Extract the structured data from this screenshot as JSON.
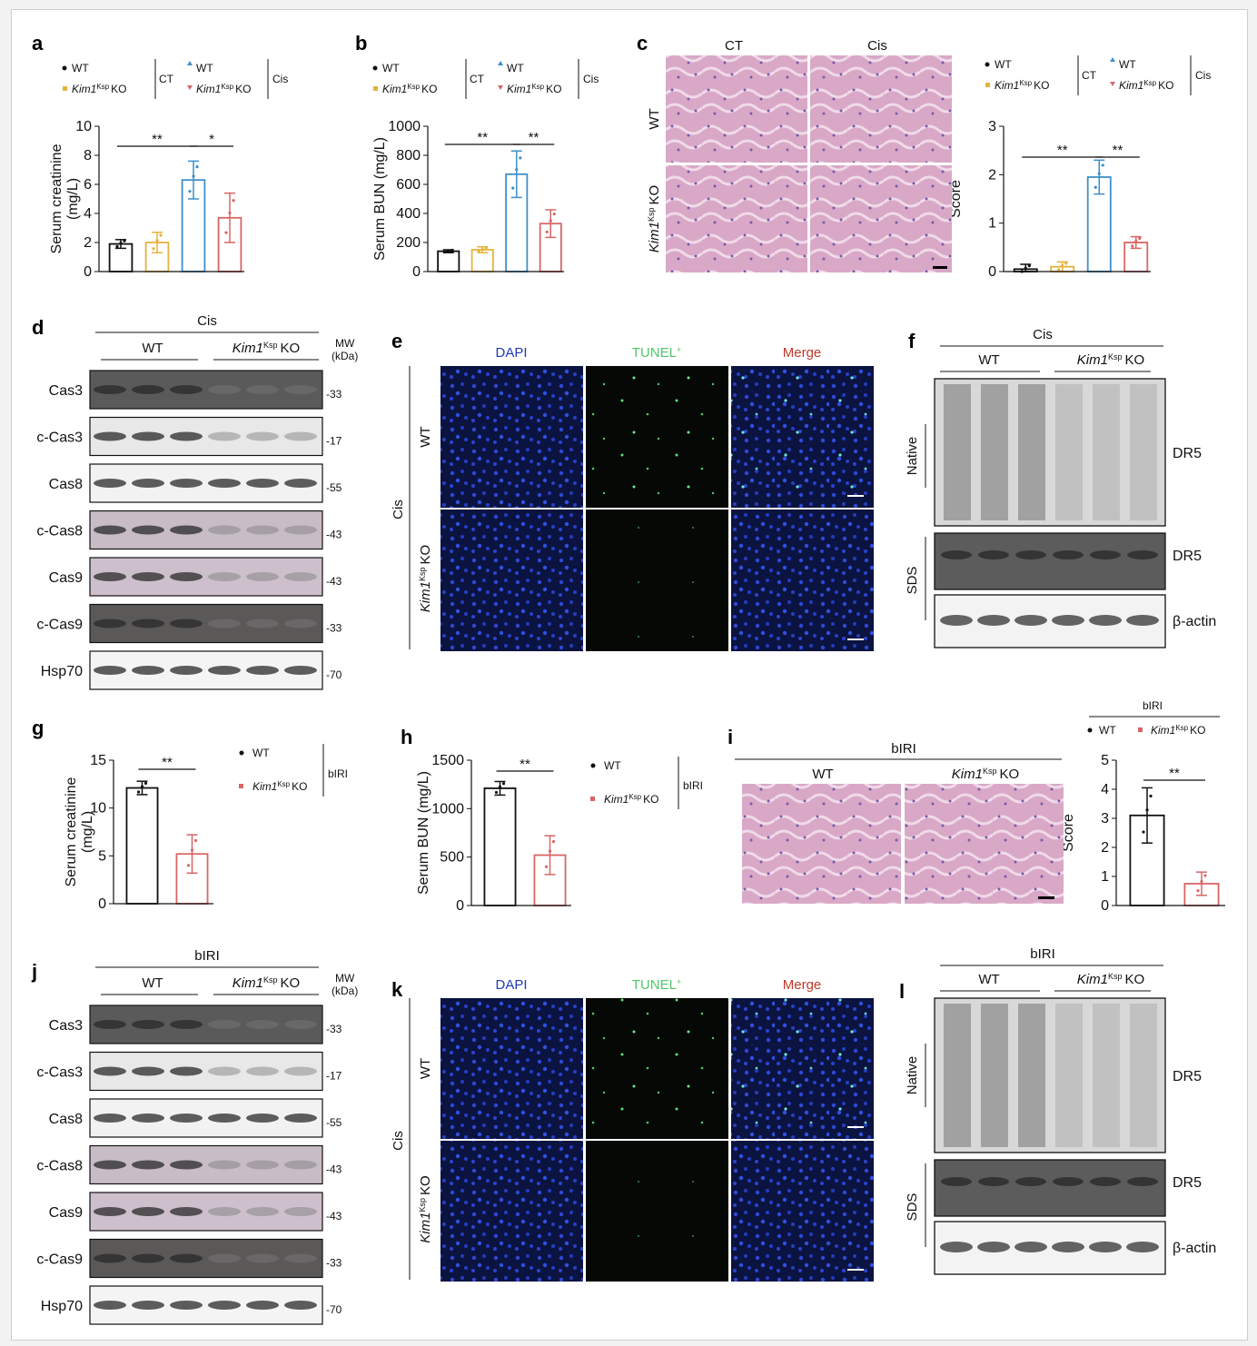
{
  "colors": {
    "wt_ct": "#111111",
    "ko_ct": "#e5b33d",
    "wt_cis": "#3d8fc9",
    "ko_cis": "#d96565",
    "he": "#d7a9c6",
    "dapi": "#1f3ab8",
    "tunel": "#4fc86a",
    "blot_dark": "#4a4a4a"
  },
  "legend": {
    "wt": "WT",
    "ko_gene": "Kim1",
    "ko_sup": "Ksp",
    "ko_suffix": "KO",
    "ct": "CT",
    "cis": "Cis",
    "biri": "bIRI"
  },
  "panels": {
    "a": {
      "letter": "a",
      "ylabel": "Serum creatinine",
      "ylabel2": "(mg/L)",
      "sig": [
        "**",
        "*"
      ]
    },
    "b": {
      "letter": "b",
      "ylabel": "Serum BUN (mg/L)",
      "sig": [
        "**",
        "**"
      ]
    },
    "c": {
      "letter": "c",
      "col1": "CT",
      "col2": "Cis",
      "row1": "WT",
      "row2": "KO",
      "ylabel": "Score",
      "sig": [
        "**",
        "**"
      ]
    },
    "d": {
      "letter": "d",
      "group": "Cis",
      "mw": "MW",
      "kda": "(kDa)",
      "rows": [
        {
          "name": "Cas3",
          "mw": "-33"
        },
        {
          "name": "c-Cas3",
          "mw": "-17"
        },
        {
          "name": "Cas8",
          "mw": "-55"
        },
        {
          "name": "c-Cas8",
          "mw": "-43"
        },
        {
          "name": "Cas9",
          "mw": "-43"
        },
        {
          "name": "c-Cas9",
          "mw": "-33"
        },
        {
          "name": "Hsp70",
          "mw": "-70"
        }
      ]
    },
    "e": {
      "letter": "e",
      "cols": [
        "DAPI",
        "TUNEL",
        "Merge"
      ],
      "tunel_sup": "+",
      "group": "Cis",
      "row1": "WT",
      "row2": "KO"
    },
    "f": {
      "letter": "f",
      "group": "Cis",
      "native": "Native",
      "sds": "SDS",
      "dr5": "DR5",
      "actin": "β-actin"
    },
    "g": {
      "letter": "g",
      "ylabel": "Serum creatinine",
      "ylabel2": "(mg/L)",
      "sig": "**"
    },
    "h": {
      "letter": "h",
      "ylabel": "Serum BUN (mg/L)",
      "sig": "**"
    },
    "i": {
      "letter": "i",
      "group": "bIRI",
      "col1": "WT",
      "ylabel": "Score",
      "sig": "**"
    },
    "j": {
      "letter": "j",
      "group": "bIRI",
      "mw": "MW",
      "kda": "(kDa)",
      "rows": [
        {
          "name": "Cas3",
          "mw": "-33"
        },
        {
          "name": "c-Cas3",
          "mw": "-17"
        },
        {
          "name": "Cas8",
          "mw": "-55"
        },
        {
          "name": "c-Cas8",
          "mw": "-43"
        },
        {
          "name": "Cas9",
          "mw": "-43"
        },
        {
          "name": "c-Cas9",
          "mw": "-33"
        },
        {
          "name": "Hsp70",
          "mw": "-70"
        }
      ]
    },
    "k": {
      "letter": "k",
      "cols": [
        "DAPI",
        "TUNEL",
        "Merge"
      ],
      "tunel_sup": "+",
      "group": "Cis",
      "row1": "WT",
      "row2": "KO"
    },
    "l": {
      "letter": "l",
      "group": "bIRI",
      "native": "Native",
      "sds": "SDS",
      "dr5": "DR5",
      "actin": "β-actin"
    }
  },
  "chart_data": [
    {
      "panel": "a",
      "type": "bar",
      "categories": [
        "WT CT",
        "Kim1Ksp KO CT",
        "WT Cis",
        "Kim1Ksp KO Cis"
      ],
      "values": [
        1.9,
        2.0,
        6.3,
        3.7
      ],
      "errors": [
        0.3,
        0.7,
        1.3,
        1.7
      ],
      "ylabel": "Serum creatinine (mg/L)",
      "ylim": [
        0,
        10
      ],
      "yticks": [
        0,
        2,
        4,
        6,
        8,
        10
      ]
    },
    {
      "panel": "b",
      "type": "bar",
      "categories": [
        "WT CT",
        "Kim1Ksp KO CT",
        "WT Cis",
        "Kim1Ksp KO Cis"
      ],
      "values": [
        140,
        150,
        670,
        330
      ],
      "errors": [
        10,
        20,
        160,
        95
      ],
      "ylabel": "Serum BUN (mg/L)",
      "ylim": [
        0,
        1000
      ],
      "yticks": [
        0,
        200,
        400,
        600,
        800,
        1000
      ]
    },
    {
      "panel": "c",
      "type": "bar",
      "categories": [
        "WT CT",
        "Kim1Ksp KO CT",
        "WT Cis",
        "Kim1Ksp KO Cis"
      ],
      "values": [
        0.05,
        0.1,
        1.95,
        0.6
      ],
      "errors": [
        0.1,
        0.1,
        0.35,
        0.12
      ],
      "ylabel": "Score",
      "ylim": [
        0,
        3
      ],
      "yticks": [
        0,
        1,
        2,
        3
      ]
    },
    {
      "panel": "g",
      "type": "bar",
      "categories": [
        "WT",
        "Kim1Ksp KO"
      ],
      "values": [
        12.1,
        5.2
      ],
      "errors": [
        0.7,
        2.0
      ],
      "ylabel": "Serum creatinine (mg/L)",
      "ylim": [
        0,
        15
      ],
      "yticks": [
        0,
        5,
        10,
        15
      ]
    },
    {
      "panel": "h",
      "type": "bar",
      "categories": [
        "WT",
        "Kim1Ksp KO"
      ],
      "values": [
        1210,
        520
      ],
      "errors": [
        70,
        200
      ],
      "ylabel": "Serum BUN (mg/L)",
      "ylim": [
        0,
        1500
      ],
      "yticks": [
        0,
        500,
        1000,
        1500
      ]
    },
    {
      "panel": "i",
      "type": "bar",
      "categories": [
        "WT",
        "Kim1Ksp KO"
      ],
      "values": [
        3.1,
        0.75
      ],
      "errors": [
        0.95,
        0.4
      ],
      "ylabel": "Score",
      "ylim": [
        0,
        5
      ],
      "yticks": [
        0,
        1,
        2,
        3,
        4,
        5
      ]
    }
  ]
}
